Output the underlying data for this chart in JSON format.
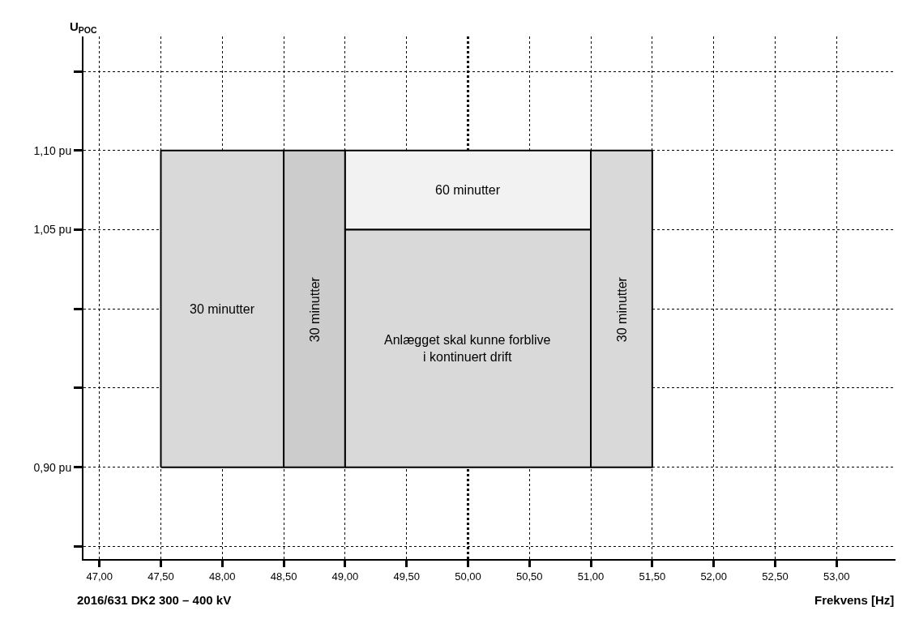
{
  "chart_data": {
    "type": "area",
    "xlabel": "Frekvens [Hz]",
    "ylabel": "U$_{POC}$",
    "annotations": [
      "2016/631 DK2 300 – 400 kV"
    ],
    "series": [
      {
        "name": "30 minutter",
        "color": "#d9d9d9",
        "x": [
          47.5,
          47.5,
          48.5,
          48.5,
          47.5
        ],
        "values": [
          0.9,
          1.1,
          1.1,
          0.9,
          0.9
        ]
      },
      {
        "name": "30 minutter",
        "color": "#cccccc",
        "x": [
          48.5,
          48.5,
          49.0,
          49.0,
          48.5
        ],
        "values": [
          0.9,
          1.1,
          1.1,
          0.9,
          0.9
        ]
      },
      {
        "name": "60 minutter",
        "color": "#f2f2f2",
        "x": [
          49.0,
          49.0,
          51.0,
          51.0,
          49.0
        ],
        "values": [
          1.05,
          1.1,
          1.1,
          1.05,
          1.05
        ]
      },
      {
        "name": "Anlægget skal kunne forblive\ni kontinuert drift",
        "color": "#d9d9d9",
        "x": [
          49.0,
          49.0,
          51.0,
          51.0,
          49.0
        ],
        "values": [
          0.9,
          1.05,
          1.05,
          0.9,
          0.9
        ]
      },
      {
        "name": "30 minutter",
        "color": "#d9d9d9",
        "x": [
          51.0,
          51.0,
          51.5,
          51.5,
          51.0
        ],
        "values": [
          0.9,
          1.1,
          1.1,
          0.9,
          0.9
        ]
      }
    ],
    "xlim": [
      46.87,
      53.48
    ],
    "xticks": [
      {
        "value": 47.0,
        "label": "47,00"
      },
      {
        "value": 47.5,
        "label": "47,50"
      },
      {
        "value": 48.0,
        "label": "48,00"
      },
      {
        "value": 48.5,
        "label": "48,50"
      },
      {
        "value": 49.0,
        "label": "49,00"
      },
      {
        "value": 49.5,
        "label": "49,50"
      },
      {
        "value": 50.0,
        "label": "50,00"
      },
      {
        "value": 50.5,
        "label": "50,50"
      },
      {
        "value": 51.0,
        "label": "51,00"
      },
      {
        "value": 51.5,
        "label": "51,50"
      },
      {
        "value": 52.0,
        "label": "52,00"
      },
      {
        "value": 52.5,
        "label": "52,50"
      },
      {
        "value": 53.0,
        "label": "53,00"
      }
    ],
    "ylim": [
      0.842,
      1.172
    ],
    "yticks": [
      {
        "value": 0.85,
        "label": null
      },
      {
        "value": 0.9,
        "label": "0,90 pu"
      },
      {
        "value": 0.95,
        "label": null
      },
      {
        "value": 1.0,
        "label": null
      },
      {
        "value": 1.05,
        "label": "1,05 pu"
      },
      {
        "value": 1.1,
        "label": "1,10 pu"
      },
      {
        "value": 1.15,
        "label": null
      }
    ],
    "ref_lines": [
      {
        "axis": "x",
        "value": 50.0,
        "line_style": "dotted"
      }
    ],
    "grid": true,
    "legend": false
  }
}
